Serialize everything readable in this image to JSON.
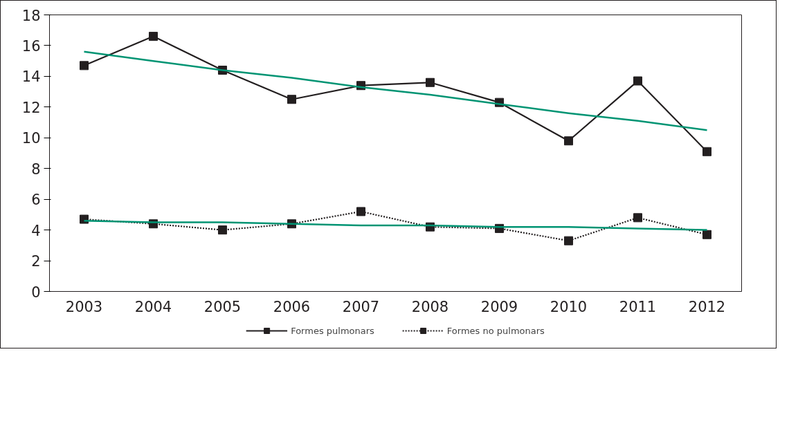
{
  "chart_data": {
    "type": "line",
    "categories": [
      "2003",
      "2004",
      "2005",
      "2006",
      "2007",
      "2008",
      "2009",
      "2010",
      "2011",
      "2012"
    ],
    "series": [
      {
        "name": "Formes pulmonars",
        "color": "#231f20",
        "line_style": "solid",
        "marker": "square",
        "values": [
          14.7,
          16.6,
          14.4,
          12.5,
          13.4,
          13.6,
          12.3,
          9.8,
          13.7,
          9.1
        ]
      },
      {
        "name": "Formes no pulmonars",
        "color": "#231f20",
        "line_style": "dotted",
        "marker": "square",
        "values": [
          4.7,
          4.4,
          4.0,
          4.4,
          5.2,
          4.2,
          4.1,
          3.3,
          4.8,
          3.7
        ]
      },
      {
        "color": "#009473",
        "line_style": "solid",
        "marker": "none",
        "values": [
          15.6,
          15.0,
          14.4,
          13.9,
          13.3,
          12.8,
          12.2,
          11.6,
          11.1,
          10.5
        ]
      },
      {
        "color": "#009473",
        "line_style": "solid",
        "marker": "none",
        "values": [
          4.6,
          4.5,
          4.5,
          4.4,
          4.3,
          4.3,
          4.2,
          4.2,
          4.1,
          4.0
        ]
      }
    ],
    "ylim": [
      0,
      18
    ],
    "yticks": [
      0,
      2,
      4,
      6,
      8,
      10,
      12,
      14,
      16,
      18
    ],
    "grid": false,
    "legend": "bottom"
  }
}
